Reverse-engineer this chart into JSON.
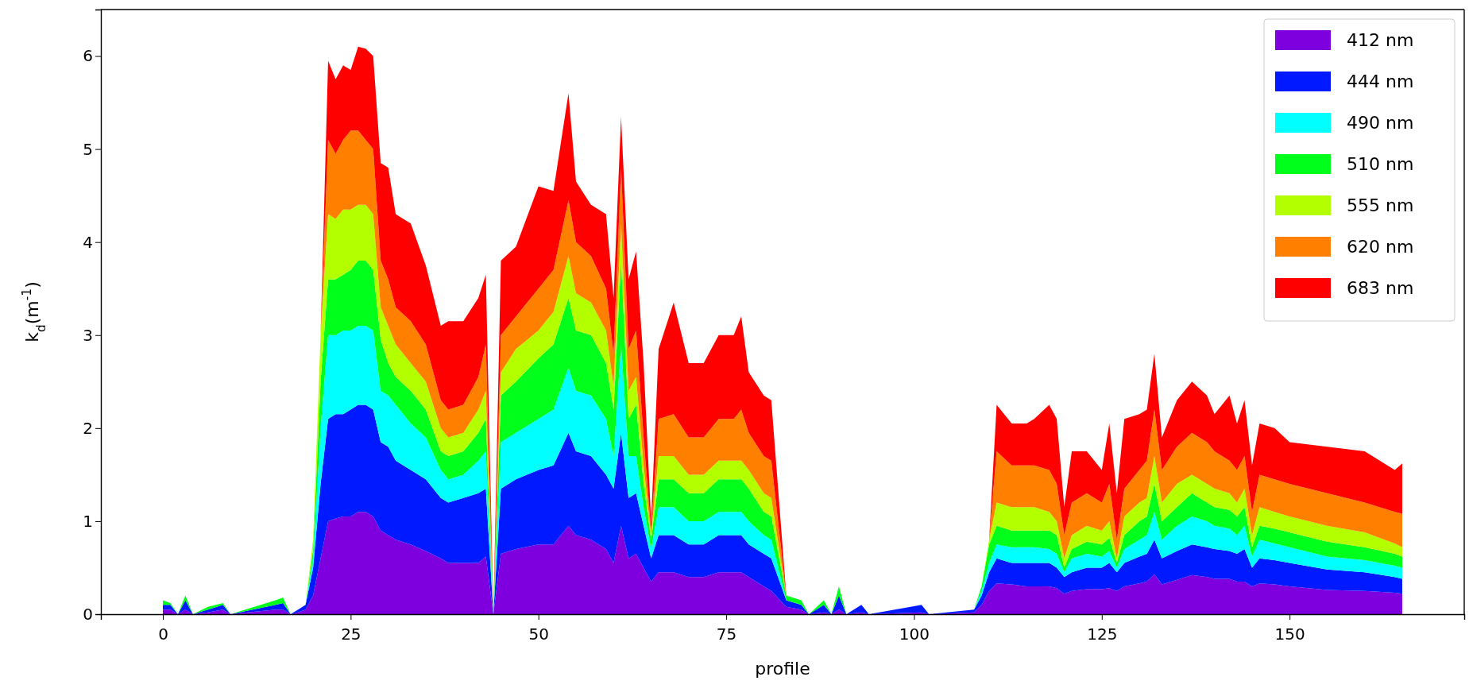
{
  "chart_data": {
    "type": "area",
    "stacked": true,
    "xlabel": "profile",
    "ylabel": "k$_{d}$(m$^{-1}$)",
    "x": [
      0,
      1,
      2,
      3,
      4,
      6,
      8,
      9,
      15,
      16,
      17,
      18,
      19,
      20,
      21,
      22,
      23,
      24,
      25,
      26,
      27,
      28,
      29,
      30,
      31,
      33,
      35,
      37,
      38,
      40,
      42,
      43,
      44,
      45,
      47,
      50,
      52,
      54,
      55,
      57,
      59,
      60,
      61,
      62,
      63,
      64,
      65,
      66,
      68,
      70,
      72,
      74,
      76,
      77,
      78,
      80,
      81,
      83,
      85,
      86,
      88,
      89,
      90,
      91,
      93,
      94,
      101,
      102,
      108,
      109,
      110,
      111,
      113,
      115,
      116,
      118,
      119,
      120,
      121,
      123,
      125,
      126,
      127,
      128,
      130,
      131,
      132,
      133,
      135,
      137,
      139,
      140,
      142,
      143,
      144,
      145,
      146,
      148,
      150,
      155,
      160,
      164,
      165
    ],
    "xlim": [
      -8.25,
      173.25
    ],
    "xticks": [
      0,
      25,
      50,
      75,
      100,
      125,
      150
    ],
    "ylim": [
      0,
      6.5
    ],
    "yticks": [
      0,
      1,
      2,
      3,
      4,
      5,
      6
    ],
    "grid": false,
    "legend": "top right",
    "series": [
      {
        "name": "412 nm",
        "color": "#7f00df",
        "values": [
          0.05,
          0.05,
          0,
          0.05,
          0,
          0.02,
          0.05,
          0,
          0.05,
          0.05,
          0,
          0.02,
          0.05,
          0.2,
          0.6,
          1.0,
          1.03,
          1.05,
          1.05,
          1.1,
          1.1,
          1.05,
          0.9,
          0.85,
          0.8,
          0.75,
          0.68,
          0.6,
          0.55,
          0.55,
          0.55,
          0.62,
          0,
          0.65,
          0.7,
          0.75,
          0.75,
          0.95,
          0.85,
          0.8,
          0.7,
          0.55,
          0.95,
          0.6,
          0.65,
          0.5,
          0.35,
          0.45,
          0.45,
          0.4,
          0.4,
          0.45,
          0.45,
          0.45,
          0.4,
          0.3,
          0.25,
          0.08,
          0.05,
          0,
          0.02,
          0,
          0.05,
          0,
          0.02,
          0,
          0.02,
          0,
          0.02,
          0.1,
          0.25,
          0.33,
          0.32,
          0.3,
          0.3,
          0.3,
          0.28,
          0.22,
          0.25,
          0.27,
          0.27,
          0.28,
          0.25,
          0.3,
          0.33,
          0.35,
          0.43,
          0.32,
          0.37,
          0.42,
          0.4,
          0.38,
          0.38,
          0.35,
          0.35,
          0.3,
          0.33,
          0.32,
          0.3,
          0.26,
          0.25,
          0.23,
          0.22
        ]
      },
      {
        "name": "444 nm",
        "color": "#0019ff",
        "values": [
          0.05,
          0.05,
          0,
          0.1,
          0,
          0.03,
          0.05,
          0,
          0.05,
          0.07,
          0,
          0.03,
          0.05,
          0.3,
          0.8,
          1.1,
          1.12,
          1.1,
          1.15,
          1.15,
          1.15,
          1.15,
          0.95,
          0.95,
          0.85,
          0.8,
          0.77,
          0.65,
          0.65,
          0.7,
          0.75,
          0.73,
          0,
          0.7,
          0.75,
          0.8,
          0.85,
          1.0,
          0.9,
          0.9,
          0.8,
          0.8,
          1.0,
          0.65,
          0.65,
          0.45,
          0.25,
          0.4,
          0.4,
          0.35,
          0.35,
          0.4,
          0.4,
          0.4,
          0.35,
          0.35,
          0.35,
          0.07,
          0.05,
          0,
          0.08,
          0,
          0.15,
          0,
          0.08,
          0,
          0.08,
          0,
          0.03,
          0.1,
          0.2,
          0.27,
          0.23,
          0.25,
          0.25,
          0.25,
          0.22,
          0.18,
          0.2,
          0.23,
          0.23,
          0.27,
          0.2,
          0.25,
          0.29,
          0.3,
          0.37,
          0.28,
          0.31,
          0.33,
          0.32,
          0.32,
          0.3,
          0.3,
          0.35,
          0.2,
          0.27,
          0.26,
          0.25,
          0.22,
          0.2,
          0.17,
          0.16
        ]
      },
      {
        "name": "490 nm",
        "color": "#00ffff",
        "values": [
          0,
          0,
          0,
          0,
          0,
          0,
          0,
          0,
          0,
          0,
          0,
          0,
          0,
          0.1,
          0.6,
          0.9,
          0.85,
          0.9,
          0.85,
          0.85,
          0.85,
          0.85,
          0.55,
          0.55,
          0.6,
          0.5,
          0.45,
          0.3,
          0.25,
          0.25,
          0.35,
          0.4,
          0,
          0.5,
          0.5,
          0.55,
          0.6,
          0.7,
          0.65,
          0.65,
          0.6,
          0.35,
          0.95,
          0.45,
          0.4,
          0.2,
          0.1,
          0.3,
          0.3,
          0.25,
          0.25,
          0.25,
          0.25,
          0.25,
          0.25,
          0.2,
          0.2,
          0,
          0,
          0,
          0,
          0,
          0,
          0,
          0,
          0,
          0,
          0,
          0,
          0.05,
          0.1,
          0.15,
          0.17,
          0.17,
          0.17,
          0.15,
          0.15,
          0.05,
          0.15,
          0.15,
          0.12,
          0.13,
          0.05,
          0.15,
          0.18,
          0.2,
          0.3,
          0.2,
          0.27,
          0.3,
          0.28,
          0.25,
          0.24,
          0.2,
          0.25,
          0.12,
          0.2,
          0.18,
          0.17,
          0.14,
          0.13,
          0.12,
          0.12
        ]
      },
      {
        "name": "510 nm",
        "color": "#00ff1a",
        "values": [
          0.05,
          0.02,
          0,
          0.05,
          0,
          0.03,
          0.02,
          0,
          0.05,
          0.06,
          0,
          0,
          0,
          0.1,
          0.5,
          0.6,
          0.6,
          0.6,
          0.65,
          0.7,
          0.7,
          0.65,
          0.55,
          0.35,
          0.3,
          0.35,
          0.3,
          0.2,
          0.25,
          0.25,
          0.3,
          0.35,
          0,
          0.5,
          0.55,
          0.65,
          0.7,
          0.75,
          0.65,
          0.65,
          0.6,
          0.5,
          0.9,
          0.4,
          0.55,
          0.25,
          0.1,
          0.3,
          0.3,
          0.3,
          0.3,
          0.35,
          0.35,
          0.35,
          0.35,
          0.25,
          0.25,
          0.05,
          0.05,
          0,
          0.05,
          0,
          0.1,
          0,
          0,
          0,
          0,
          0,
          0,
          0.05,
          0.2,
          0.2,
          0.18,
          0.18,
          0.18,
          0.2,
          0.2,
          0.05,
          0.1,
          0.13,
          0.13,
          0.14,
          0.05,
          0.15,
          0.2,
          0.2,
          0.3,
          0.2,
          0.2,
          0.25,
          0.2,
          0.2,
          0.2,
          0.2,
          0.2,
          0.1,
          0.15,
          0.16,
          0.16,
          0.16,
          0.14,
          0.13,
          0.12
        ]
      },
      {
        "name": "555 nm",
        "color": "#b3ff00",
        "values": [
          0,
          0,
          0,
          0,
          0,
          0,
          0,
          0,
          0,
          0,
          0,
          0,
          0,
          0.1,
          0.5,
          0.7,
          0.65,
          0.7,
          0.65,
          0.6,
          0.6,
          0.6,
          0.35,
          0.4,
          0.35,
          0.3,
          0.3,
          0.25,
          0.2,
          0.2,
          0.25,
          0.3,
          0,
          0.25,
          0.35,
          0.3,
          0.35,
          0.45,
          0.4,
          0.35,
          0.35,
          0.25,
          0.4,
          0.3,
          0.3,
          0.2,
          0.05,
          0.25,
          0.25,
          0.2,
          0.2,
          0.2,
          0.2,
          0.2,
          0.2,
          0.2,
          0.2,
          0,
          0,
          0,
          0,
          0,
          0,
          0,
          0,
          0,
          0,
          0,
          0,
          0,
          0.05,
          0.25,
          0.25,
          0.25,
          0.25,
          0.2,
          0.15,
          0.1,
          0.15,
          0.17,
          0.15,
          0.18,
          0.05,
          0.2,
          0.2,
          0.2,
          0.3,
          0.2,
          0.25,
          0.2,
          0.2,
          0.2,
          0.18,
          0.15,
          0.2,
          0.13,
          0.2,
          0.18,
          0.17,
          0.17,
          0.16,
          0.11,
          0.1
        ]
      },
      {
        "name": "620 nm",
        "color": "#ff7f00",
        "values": [
          0,
          0,
          0,
          0,
          0,
          0,
          0,
          0,
          0,
          0,
          0,
          0,
          0,
          0,
          0,
          0.8,
          0.7,
          0.75,
          0.85,
          0.8,
          0.7,
          0.7,
          0.5,
          0.5,
          0.4,
          0.45,
          0.4,
          0.3,
          0.3,
          0.3,
          0.35,
          0.5,
          0,
          0.4,
          0.35,
          0.45,
          0.45,
          0.6,
          0.55,
          0.5,
          0.45,
          0.35,
          0.6,
          0.45,
          0.5,
          0.3,
          0.05,
          0.4,
          0.45,
          0.4,
          0.4,
          0.45,
          0.45,
          0.55,
          0.4,
          0.4,
          0.4,
          0,
          0,
          0,
          0,
          0,
          0,
          0,
          0,
          0,
          0,
          0,
          0,
          0,
          0,
          0.55,
          0.45,
          0.45,
          0.45,
          0.45,
          0.4,
          0.25,
          0.35,
          0.35,
          0.3,
          0.4,
          0.2,
          0.3,
          0.35,
          0.4,
          0.5,
          0.35,
          0.4,
          0.45,
          0.45,
          0.4,
          0.35,
          0.35,
          0.35,
          0.25,
          0.35,
          0.35,
          0.35,
          0.35,
          0.32,
          0.34,
          0.36
        ]
      },
      {
        "name": "683 nm",
        "color": "#ff0000",
        "values": [
          0,
          0,
          0,
          0,
          0,
          0,
          0,
          0,
          0,
          0,
          0,
          0,
          0,
          0,
          0,
          0.85,
          0.8,
          0.8,
          0.65,
          0.9,
          0.98,
          1.0,
          1.05,
          1.2,
          1.0,
          1.05,
          0.85,
          0.8,
          0.95,
          0.9,
          0.85,
          0.75,
          0,
          0.8,
          0.75,
          1.1,
          0.85,
          1.15,
          0.65,
          0.55,
          0.8,
          0.6,
          0.55,
          0.75,
          0.85,
          0.8,
          0.1,
          0.75,
          1.2,
          0.8,
          0.8,
          0.9,
          0.9,
          1.0,
          0.65,
          0.65,
          0.65,
          0,
          0,
          0,
          0,
          0,
          0,
          0,
          0,
          0,
          0,
          0,
          0,
          0,
          0,
          0.5,
          0.45,
          0.45,
          0.5,
          0.7,
          0.7,
          0.3,
          0.55,
          0.45,
          0.35,
          0.65,
          0.5,
          0.75,
          0.6,
          0.55,
          0.6,
          0.35,
          0.5,
          0.55,
          0.5,
          0.4,
          0.7,
          0.5,
          0.6,
          0.5,
          0.55,
          0.55,
          0.45,
          0.5,
          0.55,
          0.45,
          0.54
        ]
      }
    ]
  }
}
